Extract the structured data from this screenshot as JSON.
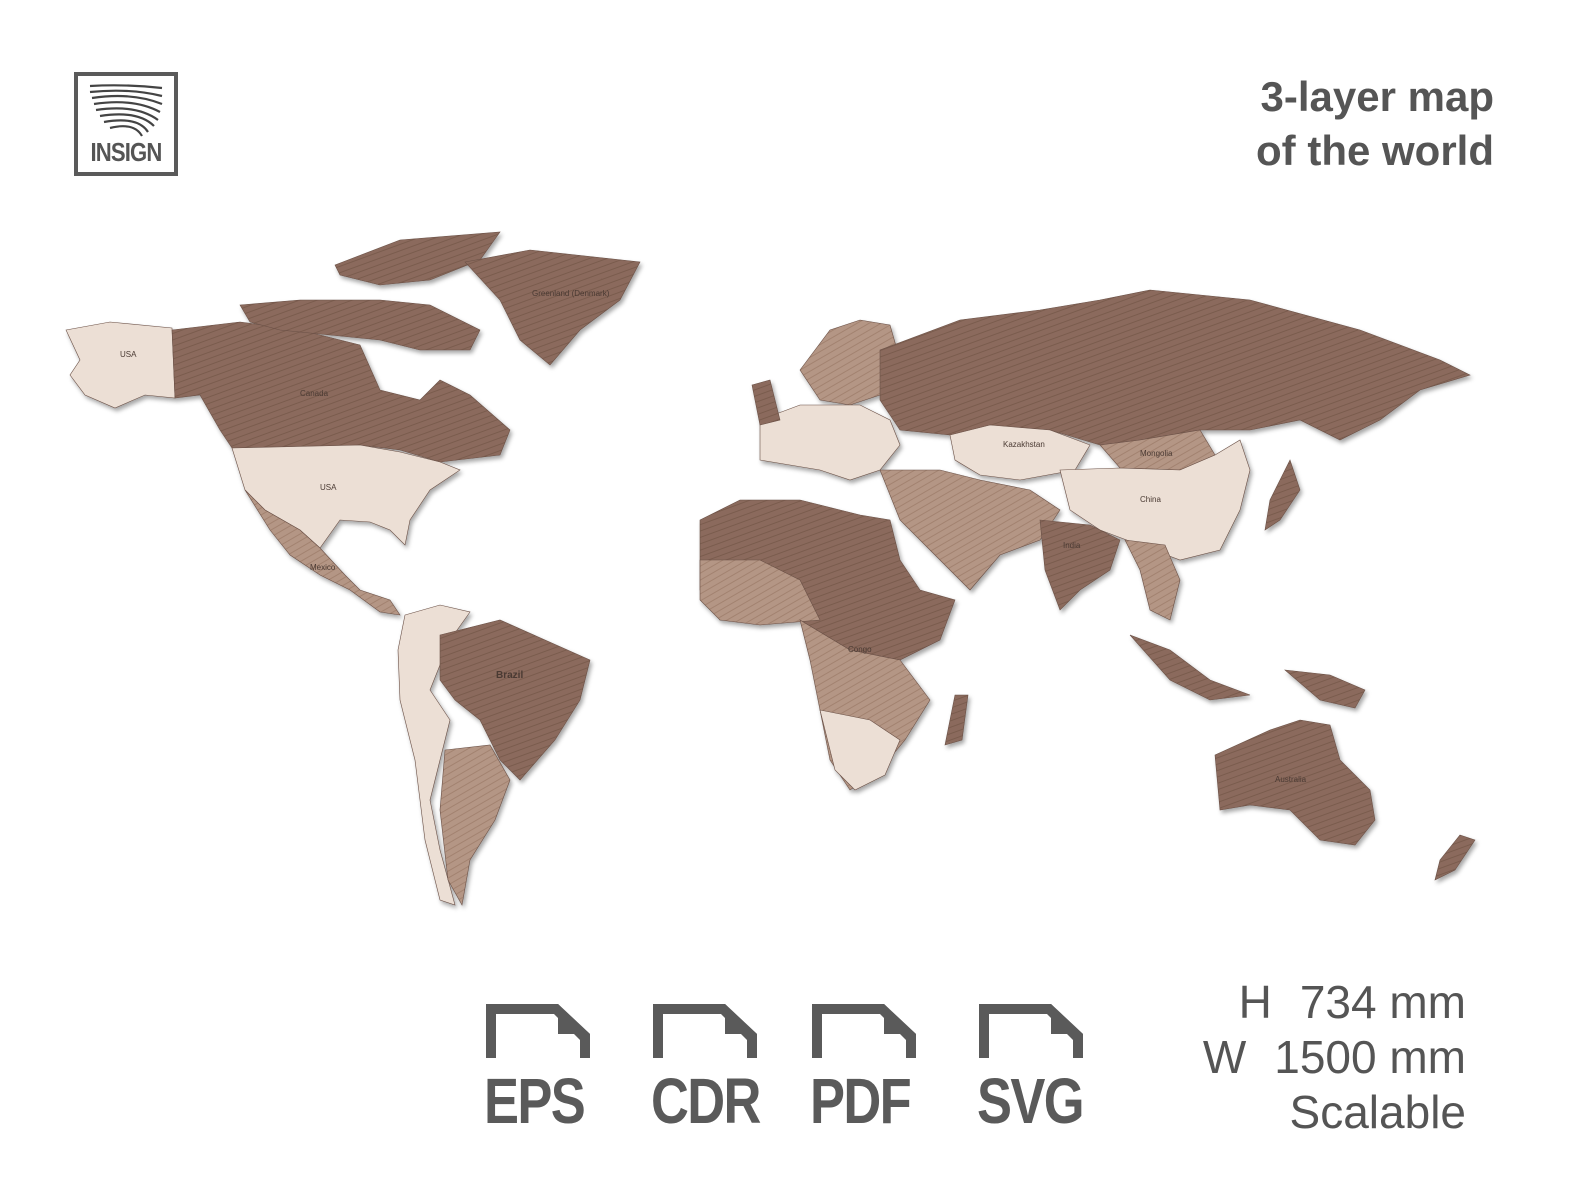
{
  "brand": {
    "logo_text": "INSIGN"
  },
  "title": {
    "line1": "3-layer map",
    "line2": "of the world"
  },
  "map": {
    "wood_colors": {
      "dark": "#8b6b5d",
      "mid": "#b49685",
      "light": "#ecdfd5"
    },
    "labels": {
      "alaska": "USA",
      "canada": "Canada",
      "usa": "USA",
      "greenland": "Greenland (Denmark)",
      "mexico": "Mexico",
      "brazil": "Brazil",
      "congo": "Congo",
      "kazakhstan": "Kazakhstan",
      "mongolia": "Mongolia",
      "china": "China",
      "india": "India",
      "australia": "Australia"
    }
  },
  "formats": [
    {
      "label": "EPS",
      "icon": "file-icon"
    },
    {
      "label": "CDR",
      "icon": "file-icon"
    },
    {
      "label": "PDF",
      "icon": "file-icon"
    },
    {
      "label": "SVG",
      "icon": "file-icon"
    }
  ],
  "dimensions": {
    "height_key": "H",
    "height_value": "734 mm",
    "width_key": "W",
    "width_value": "1500 mm",
    "note": "Scalable"
  }
}
